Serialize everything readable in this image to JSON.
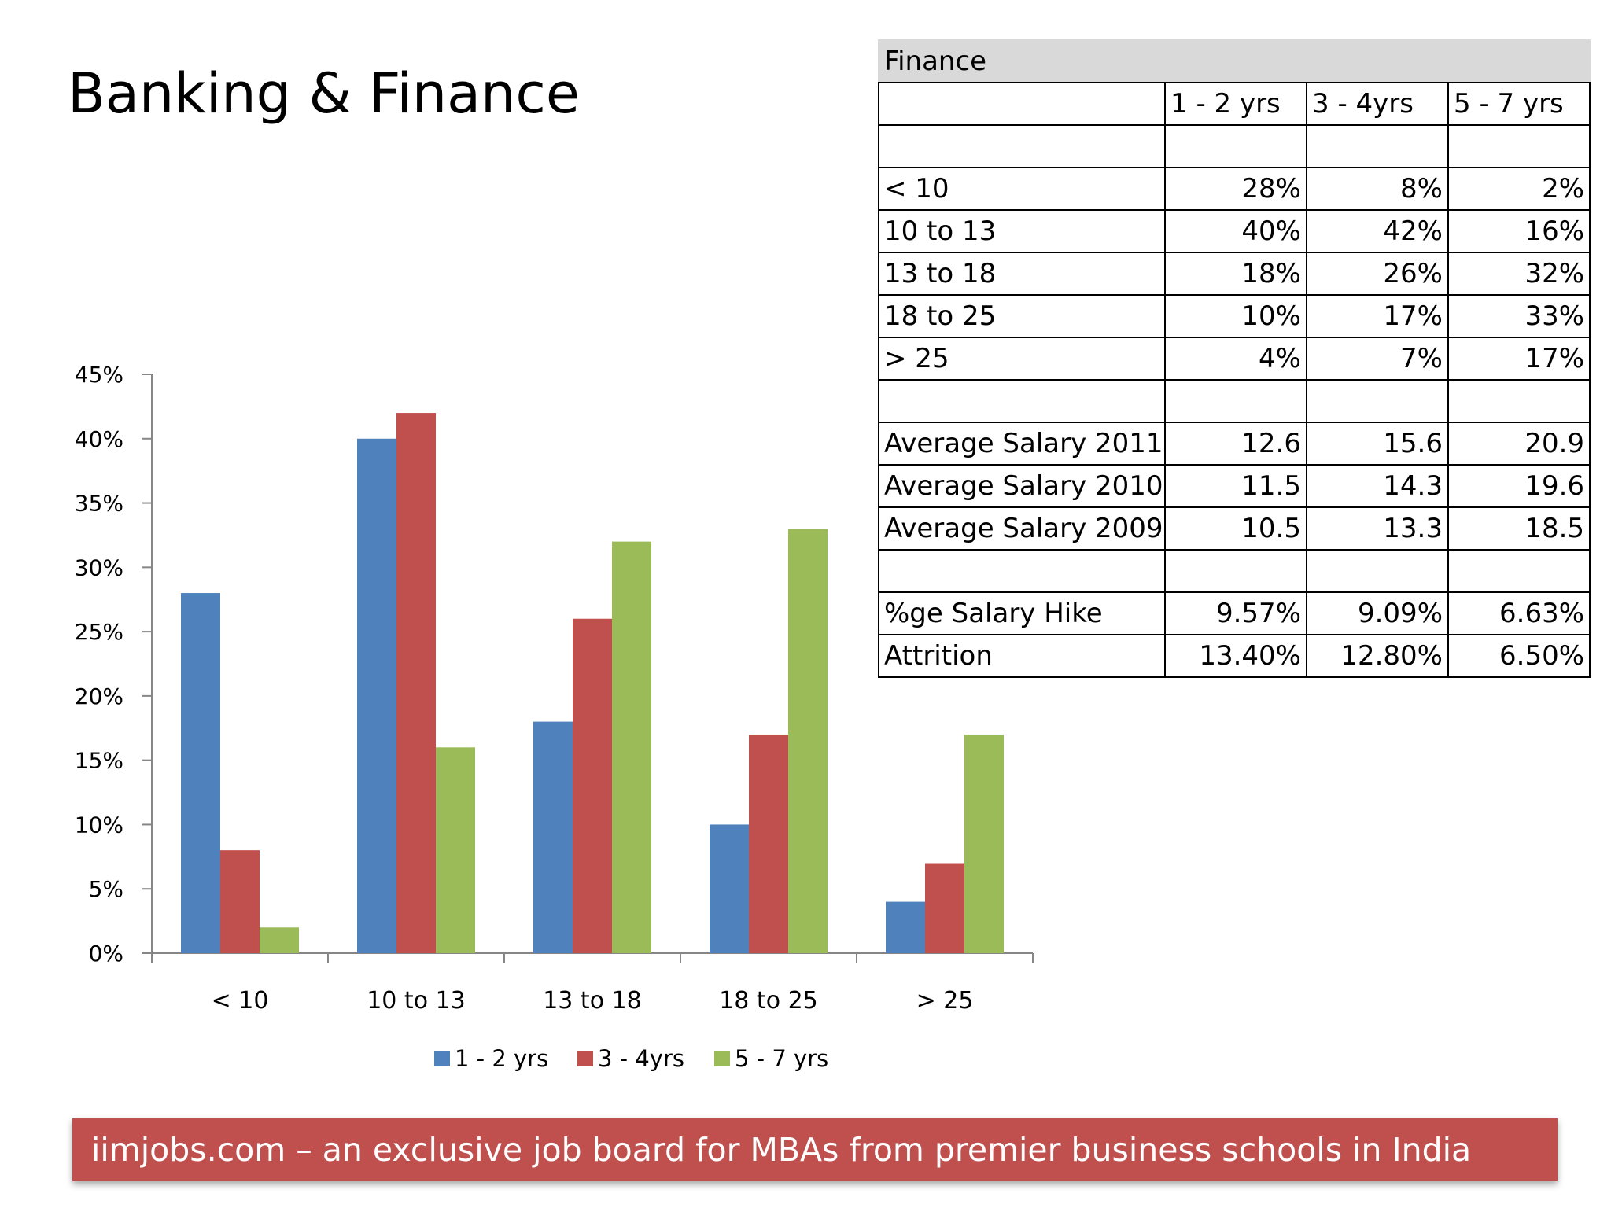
{
  "slide": {
    "title": "Banking & Finance",
    "footer": "iimjobs.com – an exclusive job board for MBAs from premier business schools in India"
  },
  "chart_data": {
    "type": "bar",
    "title": "",
    "xlabel": "",
    "ylabel": "",
    "categories": [
      "< 10",
      "10 to 13",
      "13 to 18",
      "18 to 25",
      "> 25"
    ],
    "series": [
      {
        "name": "1 - 2 yrs",
        "values": [
          28,
          40,
          18,
          10,
          4
        ],
        "color": "#4f81bd"
      },
      {
        "name": "3 - 4yrs",
        "values": [
          8,
          42,
          26,
          17,
          7
        ],
        "color": "#c0504d"
      },
      {
        "name": "5 - 7 yrs",
        "values": [
          2,
          16,
          32,
          33,
          17
        ],
        "color": "#9bbb59"
      }
    ],
    "ylim": [
      0,
      45
    ],
    "yticks": [
      "0%",
      "5%",
      "10%",
      "15%",
      "20%",
      "25%",
      "30%",
      "35%",
      "40%",
      "45%"
    ],
    "grid": false,
    "legend_position": "bottom"
  },
  "table": {
    "title": "Finance",
    "columns": [
      "1 - 2 yrs",
      "3 - 4yrs",
      "5 - 7 yrs"
    ],
    "rows": [
      {
        "label": "",
        "values": [
          "",
          "",
          ""
        ]
      },
      {
        "label": "< 10",
        "values": [
          "28%",
          "8%",
          "2%"
        ]
      },
      {
        "label": "10 to 13",
        "values": [
          "40%",
          "42%",
          "16%"
        ]
      },
      {
        "label": "13 to 18",
        "values": [
          "18%",
          "26%",
          "32%"
        ]
      },
      {
        "label": "18 to 25",
        "values": [
          "10%",
          "17%",
          "33%"
        ]
      },
      {
        "label": "> 25",
        "values": [
          "4%",
          "7%",
          "17%"
        ]
      },
      {
        "label": "",
        "values": [
          "",
          "",
          ""
        ]
      },
      {
        "label": "Average Salary 2011",
        "values": [
          "12.6",
          "15.6",
          "20.9"
        ]
      },
      {
        "label": "Average Salary 2010",
        "values": [
          "11.5",
          "14.3",
          "19.6"
        ]
      },
      {
        "label": "Average Salary 2009",
        "values": [
          "10.5",
          "13.3",
          "18.5"
        ]
      },
      {
        "label": "",
        "values": [
          "",
          "",
          ""
        ]
      },
      {
        "label": "%ge Salary Hike",
        "values": [
          "9.57%",
          "9.09%",
          "6.63%"
        ]
      },
      {
        "label": "Attrition",
        "values": [
          "13.40%",
          "12.80%",
          "6.50%"
        ]
      }
    ]
  }
}
